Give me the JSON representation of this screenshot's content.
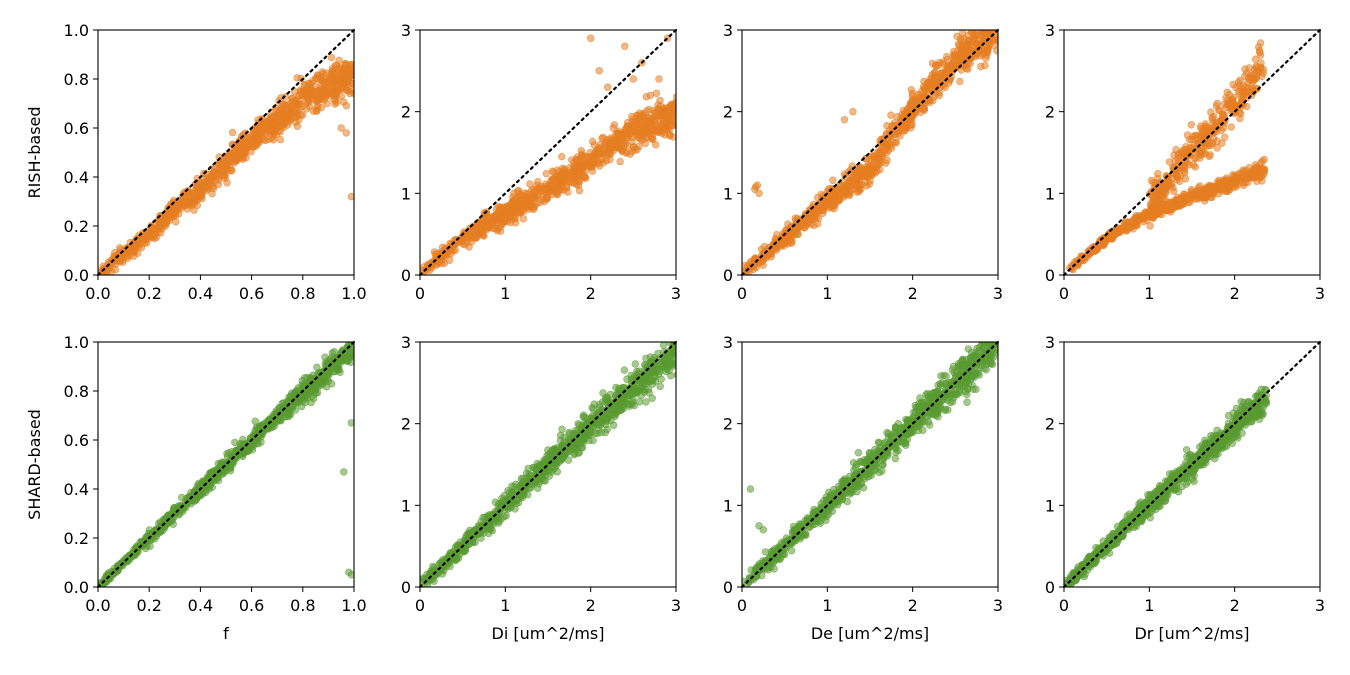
{
  "figure": {
    "rows": [
      {
        "ylabel": "RISH-based",
        "color": "#e67e22"
      },
      {
        "ylabel": "SHARD-based",
        "color": "#5a9a32"
      }
    ]
  },
  "chart_data": [
    {
      "type": "scatter",
      "row": 0,
      "col": 0,
      "ylabel": "RISH-based",
      "xlabel": "",
      "xlim": [
        0,
        1
      ],
      "ylim": [
        0,
        1
      ],
      "xticks": [
        "0.0",
        "0.2",
        "0.4",
        "0.6",
        "0.8",
        "1.0"
      ],
      "yticks": [
        "0.0",
        "0.2",
        "0.4",
        "0.6",
        "0.8",
        "1.0"
      ],
      "identity_line": true,
      "trend": [
        [
          0,
          0
        ],
        [
          0.2,
          0.17
        ],
        [
          0.4,
          0.35
        ],
        [
          0.6,
          0.55
        ],
        [
          0.8,
          0.72
        ],
        [
          1.0,
          0.82
        ]
      ],
      "spread": 0.04,
      "n_points": 900,
      "outliers": [
        [
          0.99,
          0.32
        ],
        [
          0.97,
          0.58
        ],
        [
          0.95,
          0.6
        ]
      ]
    },
    {
      "type": "scatter",
      "row": 0,
      "col": 1,
      "xlabel": "",
      "xlim": [
        0,
        3
      ],
      "ylim": [
        0,
        3
      ],
      "xticks": [
        "0",
        "1",
        "2",
        "3"
      ],
      "yticks": [
        "0",
        "1",
        "2",
        "3"
      ],
      "identity_line": true,
      "trend": [
        [
          0.05,
          0.05
        ],
        [
          0.5,
          0.45
        ],
        [
          1.0,
          0.75
        ],
        [
          1.5,
          1.05
        ],
        [
          2.0,
          1.4
        ],
        [
          2.5,
          1.75
        ],
        [
          3.0,
          2.0
        ]
      ],
      "spread": 0.12,
      "n_points": 900,
      "outliers": [
        [
          2.0,
          2.9
        ],
        [
          2.1,
          2.5
        ],
        [
          2.2,
          2.3
        ],
        [
          2.4,
          2.8
        ],
        [
          2.6,
          2.6
        ],
        [
          2.8,
          2.4
        ],
        [
          2.9,
          2.9
        ],
        [
          2.7,
          2.2
        ],
        [
          2.5,
          2.4
        ]
      ]
    },
    {
      "type": "scatter",
      "row": 0,
      "col": 2,
      "xlabel": "",
      "xlim": [
        0,
        3
      ],
      "ylim": [
        0,
        3
      ],
      "xticks": [
        "0",
        "1",
        "2",
        "3"
      ],
      "yticks": [
        "0",
        "1",
        "2",
        "3"
      ],
      "identity_line": true,
      "trend": [
        [
          0.05,
          0.05
        ],
        [
          0.5,
          0.45
        ],
        [
          1.0,
          0.9
        ],
        [
          1.5,
          1.3
        ],
        [
          1.9,
          1.9
        ],
        [
          2.2,
          2.3
        ],
        [
          2.6,
          2.7
        ],
        [
          3.0,
          3.0
        ]
      ],
      "spread": 0.12,
      "n_points": 900,
      "outliers": [
        [
          0.15,
          1.05
        ],
        [
          0.18,
          1.1
        ],
        [
          0.2,
          1.0
        ],
        [
          0.16,
          1.08
        ],
        [
          1.2,
          1.9
        ],
        [
          1.3,
          2.0
        ]
      ]
    },
    {
      "type": "scatter",
      "row": 0,
      "col": 3,
      "xlabel": "",
      "xlim": [
        0,
        3
      ],
      "ylim": [
        0,
        3
      ],
      "xticks": [
        "0",
        "1",
        "2",
        "3"
      ],
      "yticks": [
        "0",
        "1",
        "2",
        "3"
      ],
      "identity_line": true,
      "trend": [
        [
          0.05,
          0.05
        ],
        [
          0.5,
          0.45
        ],
        [
          1.0,
          0.75
        ],
        [
          1.5,
          0.95
        ],
        [
          2.0,
          1.15
        ],
        [
          2.35,
          1.3
        ]
      ],
      "spread": 0.05,
      "n_points": 600,
      "branch": [
        [
          1.0,
          0.9
        ],
        [
          1.4,
          1.4
        ],
        [
          1.8,
          1.85
        ],
        [
          2.1,
          2.2
        ],
        [
          2.35,
          2.6
        ]
      ],
      "branch_points": 350
    },
    {
      "type": "scatter",
      "row": 1,
      "col": 0,
      "ylabel": "SHARD-based",
      "xlabel": "f",
      "xlim": [
        0,
        1
      ],
      "ylim": [
        0,
        1
      ],
      "xticks": [
        "0.0",
        "0.2",
        "0.4",
        "0.6",
        "0.8",
        "1.0"
      ],
      "yticks": [
        "0.0",
        "0.2",
        "0.4",
        "0.6",
        "0.8",
        "1.0"
      ],
      "identity_line": true,
      "trend": [
        [
          0,
          0
        ],
        [
          0.5,
          0.5
        ],
        [
          1.0,
          0.98
        ]
      ],
      "spread": 0.025,
      "n_points": 900,
      "outliers": [
        [
          0.96,
          0.47
        ],
        [
          0.99,
          0.67
        ],
        [
          0.98,
          0.06
        ],
        [
          0.99,
          0.05
        ]
      ]
    },
    {
      "type": "scatter",
      "row": 1,
      "col": 1,
      "xlabel": "Di [um^2/ms]",
      "xlim": [
        0,
        3
      ],
      "ylim": [
        0,
        3
      ],
      "xticks": [
        "0",
        "1",
        "2",
        "3"
      ],
      "yticks": [
        "0",
        "1",
        "2",
        "3"
      ],
      "identity_line": true,
      "trend": [
        [
          0.05,
          0.05
        ],
        [
          1.5,
          1.5
        ],
        [
          3.0,
          2.9
        ]
      ],
      "spread": 0.12,
      "n_points": 900
    },
    {
      "type": "scatter",
      "row": 1,
      "col": 2,
      "xlabel": "De [um^2/ms]",
      "xlim": [
        0,
        3
      ],
      "ylim": [
        0,
        3
      ],
      "xticks": [
        "0",
        "1",
        "2",
        "3"
      ],
      "yticks": [
        "0",
        "1",
        "2",
        "3"
      ],
      "identity_line": true,
      "trend": [
        [
          0.05,
          0.05
        ],
        [
          1.5,
          1.5
        ],
        [
          3.0,
          3.0
        ]
      ],
      "spread": 0.12,
      "n_points": 900,
      "outliers": [
        [
          0.1,
          1.2
        ],
        [
          0.2,
          0.75
        ],
        [
          0.25,
          0.7
        ]
      ]
    },
    {
      "type": "scatter",
      "row": 1,
      "col": 3,
      "xlabel": "Dr [um^2/ms]",
      "xlim": [
        0,
        3
      ],
      "ylim": [
        0,
        3
      ],
      "xticks": [
        "0",
        "1",
        "2",
        "3"
      ],
      "yticks": [
        "0",
        "1",
        "2",
        "3"
      ],
      "identity_line": true,
      "trend": [
        [
          0.05,
          0.05
        ],
        [
          1.2,
          1.2
        ],
        [
          2.35,
          2.3
        ]
      ],
      "spread": 0.09,
      "n_points": 900
    }
  ]
}
